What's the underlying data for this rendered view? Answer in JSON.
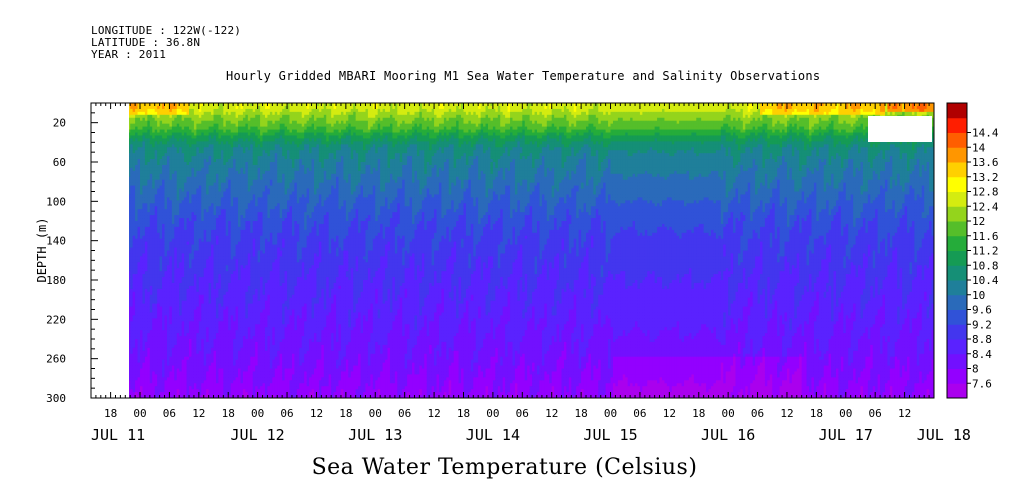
{
  "header": {
    "longitude": "LONGITUDE : 122W(-122)",
    "latitude": "LATITUDE : 36.8N",
    "year": "YEAR : 2011"
  },
  "chart_data": {
    "type": "heatmap",
    "title": "Hourly Gridded MBARI Mooring M1 Sea Water Temperature and Salinity Observations",
    "xlabel": "Sea Water Temperature (Celsius)",
    "ylabel": "DEPTH (m)",
    "x_range_hours_from_jul11_00": [
      14,
      110
    ],
    "data_start_hour": 18,
    "ylim": [
      0,
      300
    ],
    "y_inverted": true,
    "y_ticks": [
      20,
      60,
      100,
      140,
      180,
      220,
      260,
      300
    ],
    "x_hour_ticks": [
      {
        "h": 18,
        "label": "18"
      },
      {
        "h": 24,
        "label": "00"
      },
      {
        "h": 30,
        "label": "06"
      },
      {
        "h": 36,
        "label": "12"
      },
      {
        "h": 42,
        "label": "18"
      },
      {
        "h": 48,
        "label": "00"
      },
      {
        "h": 54,
        "label": "06"
      },
      {
        "h": 60,
        "label": "12"
      },
      {
        "h": 66,
        "label": "18"
      },
      {
        "h": 72,
        "label": "00"
      },
      {
        "h": 78,
        "label": "06"
      },
      {
        "h": 84,
        "label": "12"
      },
      {
        "h": 90,
        "label": "18"
      },
      {
        "h": 96,
        "label": "00"
      },
      {
        "h": 102,
        "label": "06"
      },
      {
        "h": 108,
        "label": "12"
      },
      {
        "h": 114,
        "label": "18"
      },
      {
        "h": 120,
        "label": "00"
      },
      {
        "h": 126,
        "label": "06"
      },
      {
        "h": 132,
        "label": "12"
      },
      {
        "h": 138,
        "label": "18"
      },
      {
        "h": 144,
        "label": "00"
      },
      {
        "h": 150,
        "label": "06"
      },
      {
        "h": 156,
        "label": "12"
      },
      {
        "h": 162,
        "label": "18"
      },
      {
        "h": 168,
        "label": "00"
      },
      {
        "h": 174,
        "label": "06"
      },
      {
        "h": 180,
        "label": "12"
      }
    ],
    "x_day_labels": [
      {
        "h": 14,
        "label": "JUL 11"
      },
      {
        "h": 48,
        "label": "JUL 12"
      },
      {
        "h": 72,
        "label": "JUL 13"
      },
      {
        "h": 96,
        "label": "JUL 14"
      },
      {
        "h": 120,
        "label": "JUL 15"
      },
      {
        "h": 144,
        "label": "JUL 16"
      },
      {
        "h": 168,
        "label": "JUL 17"
      },
      {
        "h": 188,
        "label": "JUL 18"
      }
    ],
    "x_tick_range_hours": [
      14,
      186
    ],
    "colorbar": {
      "levels": [
        7.6,
        8,
        8.4,
        8.8,
        9.2,
        9.6,
        10,
        10.4,
        10.8,
        11.2,
        11.6,
        12,
        12.4,
        12.8,
        13.2,
        13.6,
        14,
        14.4
      ],
      "colors": [
        "#aa00ee",
        "#9300ff",
        "#7210ff",
        "#5a22ff",
        "#4336ee",
        "#3052d8",
        "#2a6aba",
        "#1f7f9a",
        "#158f76",
        "#159b54",
        "#25ac3a",
        "#55be2a",
        "#94d41c",
        "#d4ec10",
        "#ffff00",
        "#ffd000",
        "#ff9600",
        "#ff5e00",
        "#ff1e00",
        "#b00000"
      ]
    },
    "temperature_profile": [
      {
        "depth": 5,
        "temp": 12.6
      },
      {
        "depth": 15,
        "temp": 12.1
      },
      {
        "depth": 25,
        "temp": 11.7
      },
      {
        "depth": 35,
        "temp": 11.0
      },
      {
        "depth": 45,
        "temp": 10.5
      },
      {
        "depth": 60,
        "temp": 10.2
      },
      {
        "depth": 80,
        "temp": 9.9
      },
      {
        "depth": 100,
        "temp": 9.6
      },
      {
        "depth": 120,
        "temp": 9.3
      },
      {
        "depth": 140,
        "temp": 9.1
      },
      {
        "depth": 160,
        "temp": 8.95
      },
      {
        "depth": 180,
        "temp": 8.8
      },
      {
        "depth": 200,
        "temp": 8.65
      },
      {
        "depth": 220,
        "temp": 8.5
      },
      {
        "depth": 240,
        "temp": 8.35
      },
      {
        "depth": 260,
        "temp": 8.2
      },
      {
        "depth": 280,
        "temp": 8.0
      },
      {
        "depth": 300,
        "temp": 7.8
      }
    ]
  }
}
